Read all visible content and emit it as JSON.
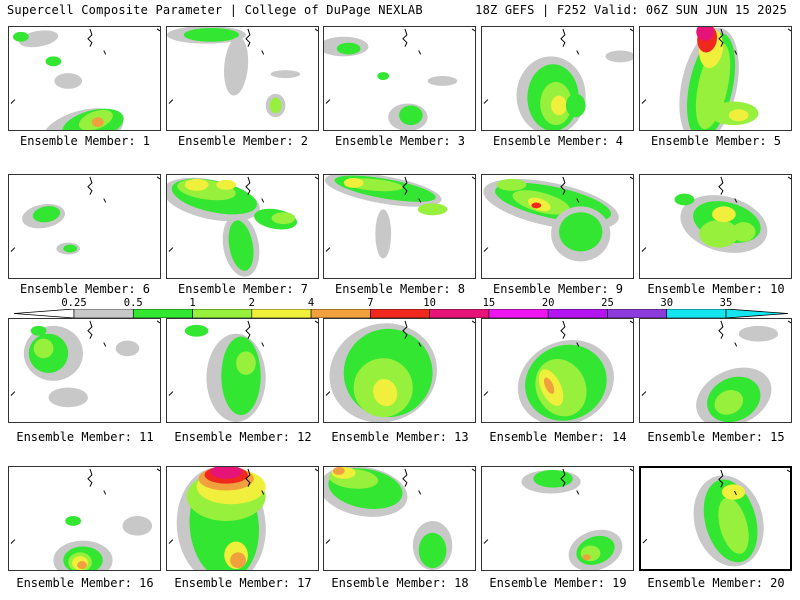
{
  "header": {
    "left": "Supercell Composite Parameter | College of DuPage NEXLAB",
    "right": "18Z GEFS | F252 Valid: 06Z SUN JUN 15 2025"
  },
  "panels": [
    {
      "label": "Ensemble Member: 1"
    },
    {
      "label": "Ensemble Member: 2"
    },
    {
      "label": "Ensemble Member: 3"
    },
    {
      "label": "Ensemble Member: 4"
    },
    {
      "label": "Ensemble Member: 5"
    },
    {
      "label": "Ensemble Member: 6"
    },
    {
      "label": "Ensemble Member: 7"
    },
    {
      "label": "Ensemble Member: 8"
    },
    {
      "label": "Ensemble Member: 9"
    },
    {
      "label": "Ensemble Member: 10"
    },
    {
      "label": "Ensemble Member: 11"
    },
    {
      "label": "Ensemble Member: 12"
    },
    {
      "label": "Ensemble Member: 13"
    },
    {
      "label": "Ensemble Member: 14"
    },
    {
      "label": "Ensemble Member: 15"
    },
    {
      "label": "Ensemble Member: 16"
    },
    {
      "label": "Ensemble Member: 17"
    },
    {
      "label": "Ensemble Member: 18"
    },
    {
      "label": "Ensemble Member: 19"
    },
    {
      "label": "Ensemble Member: 20",
      "selected": true
    }
  ],
  "legend": {
    "levels": [
      "0.25",
      "0.5",
      "1",
      "2",
      "4",
      "7",
      "10",
      "15",
      "20",
      "25",
      "30",
      "35"
    ],
    "colors": [
      "#c8c8c8",
      "#32e632",
      "#96f03c",
      "#f0f03c",
      "#f0a03c",
      "#f0281e",
      "#e61478",
      "#f014f0",
      "#b414f0",
      "#8c3cdc",
      "#14e6f0"
    ]
  },
  "colors": {
    "gray": "#c8c8c8",
    "green": "#32e632",
    "lightgreen": "#96f03c",
    "yellow": "#f0f03c",
    "orange": "#f0a03c",
    "red": "#f0281e",
    "magenta": "#e61478"
  }
}
